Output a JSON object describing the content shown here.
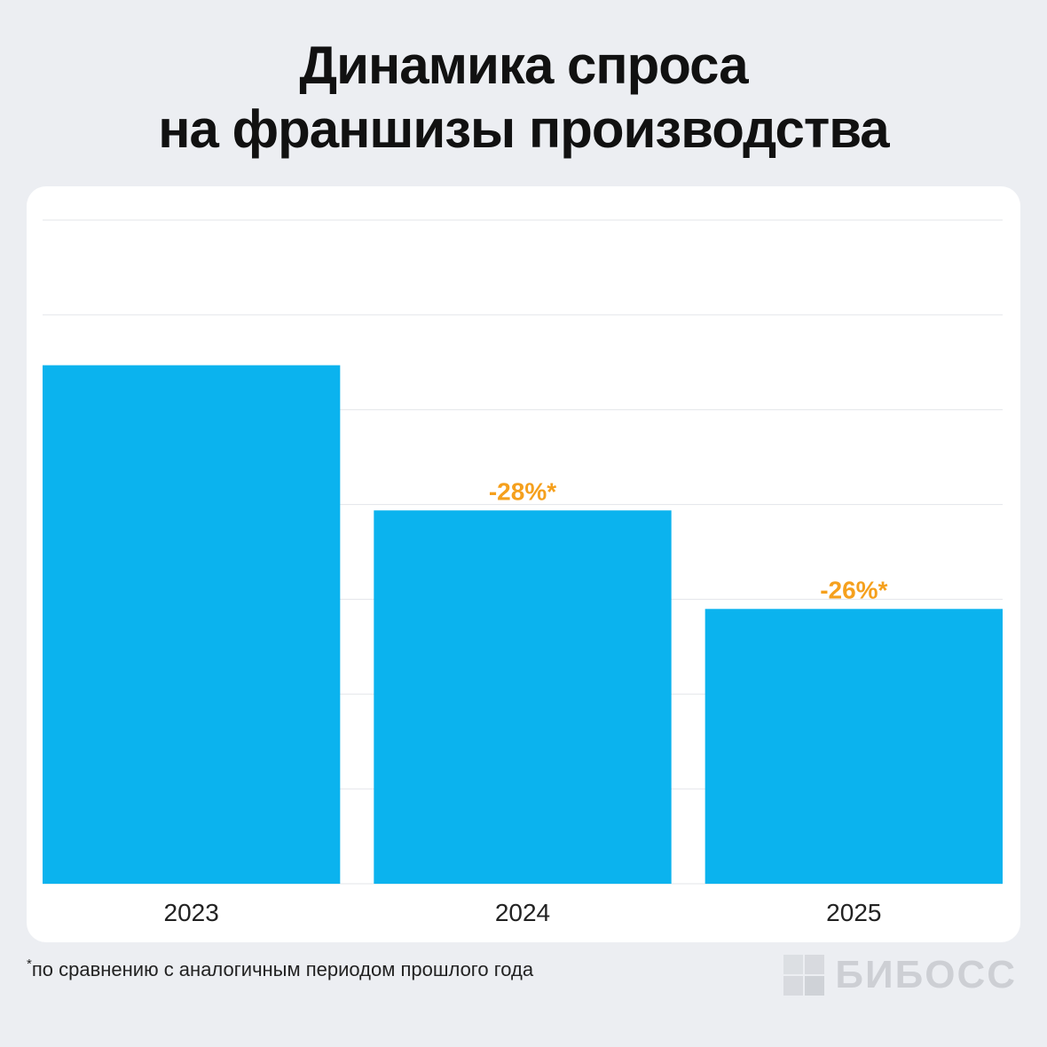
{
  "title": {
    "line1": "Динамика спроса",
    "line2": "на франшизы производства"
  },
  "footnote": {
    "star": "*",
    "text": "по сравнению с аналогичным периодом прошлого года"
  },
  "brand": {
    "name": "БИБОСС"
  },
  "colors": {
    "bar": "#0bb3ee",
    "annotation": "#f5a01d",
    "grid": "#e3e5e9",
    "axis_text": "#222222"
  },
  "chart_data": {
    "type": "bar",
    "categories": [
      "2023",
      "2024",
      "2025"
    ],
    "values": [
      100,
      72,
      53
    ],
    "annotations": [
      "",
      "-28%*",
      "-26%*"
    ],
    "ylim": [
      0,
      128
    ],
    "grid": true,
    "title": "",
    "xlabel": "",
    "ylabel": ""
  }
}
